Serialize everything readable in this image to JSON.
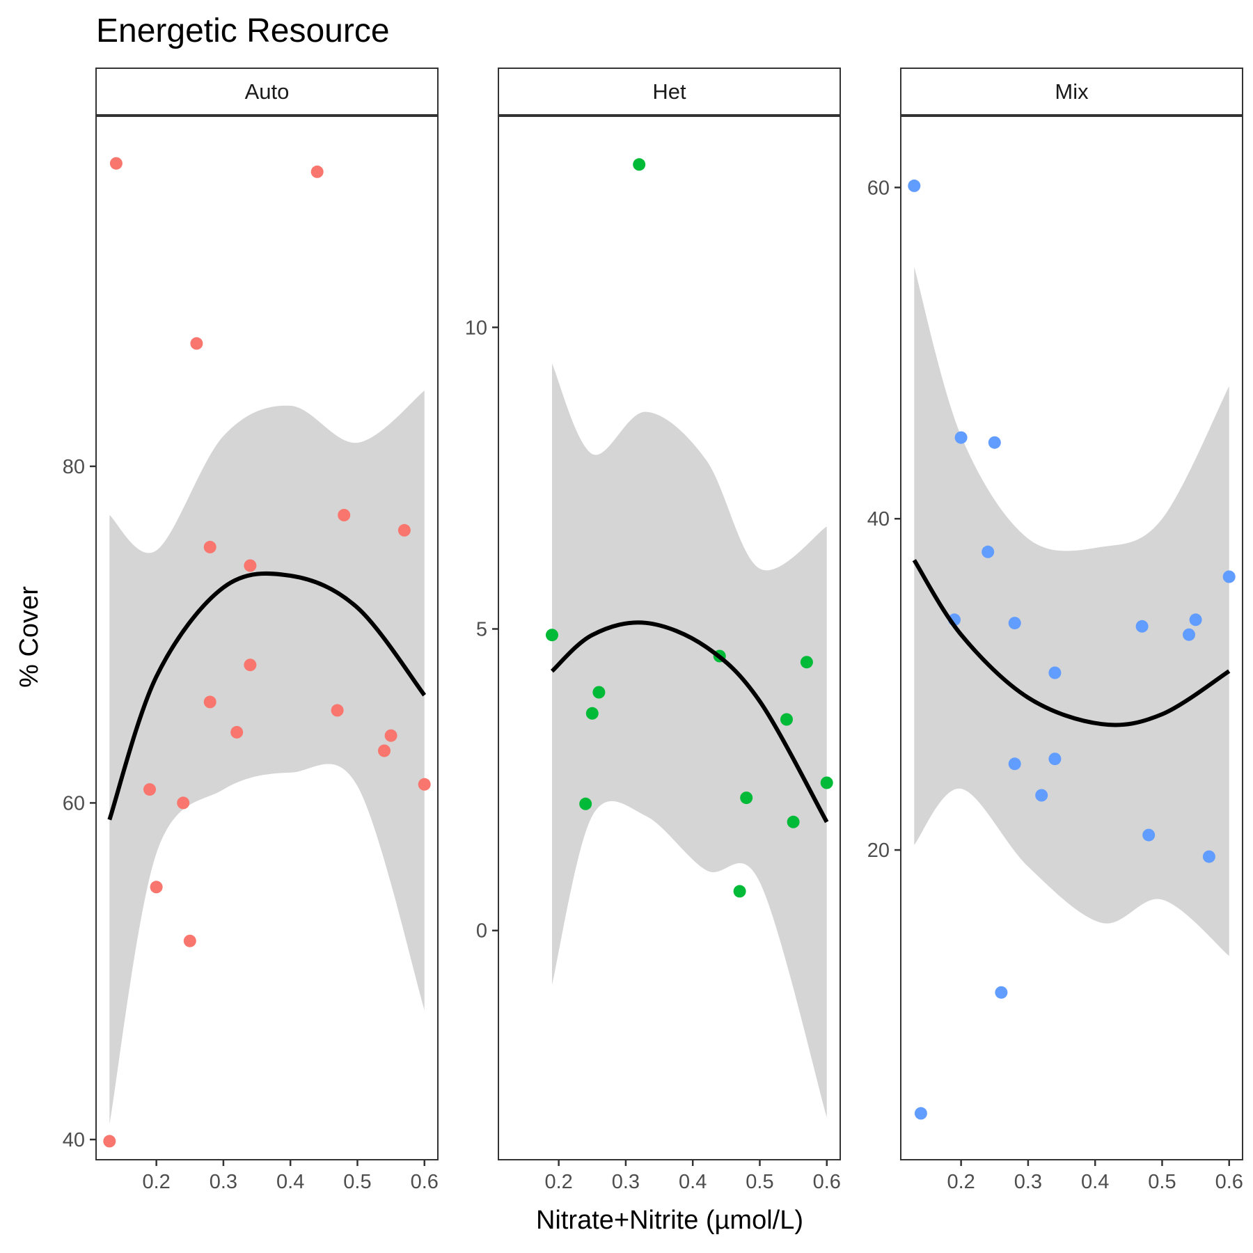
{
  "chart_data": {
    "type": "scatter",
    "title": "Energetic Resource",
    "xlabel": "Nitrate+Nitrite (µmol/L)",
    "ylabel": "% Cover",
    "x_ticks": [
      "0.2",
      "0.3",
      "0.4",
      "0.5",
      "0.6"
    ],
    "xlim": [
      0.11,
      0.62
    ],
    "grid": false,
    "legend": "none",
    "fit_color": "#000000",
    "ribbon_color": "#d5d5d5",
    "panels": [
      {
        "name": "Auto",
        "color": "#F8766D",
        "ylim": [
          38.8,
          100.8
        ],
        "y_ticks": [
          40,
          60,
          80
        ],
        "y_tick_labels": [
          "40",
          "60",
          "80"
        ],
        "points": [
          {
            "x": 0.13,
            "y": 39.9
          },
          {
            "x": 0.14,
            "y": 98.0
          },
          {
            "x": 0.19,
            "y": 60.8
          },
          {
            "x": 0.2,
            "y": 55.0
          },
          {
            "x": 0.24,
            "y": 60.0
          },
          {
            "x": 0.25,
            "y": 51.8
          },
          {
            "x": 0.26,
            "y": 87.3
          },
          {
            "x": 0.28,
            "y": 75.2
          },
          {
            "x": 0.28,
            "y": 66.0
          },
          {
            "x": 0.32,
            "y": 64.2
          },
          {
            "x": 0.34,
            "y": 74.1
          },
          {
            "x": 0.34,
            "y": 68.2
          },
          {
            "x": 0.44,
            "y": 97.5
          },
          {
            "x": 0.47,
            "y": 65.5
          },
          {
            "x": 0.48,
            "y": 77.1
          },
          {
            "x": 0.54,
            "y": 63.1
          },
          {
            "x": 0.55,
            "y": 64.0
          },
          {
            "x": 0.57,
            "y": 76.2
          },
          {
            "x": 0.6,
            "y": 61.1
          }
        ],
        "fit": [
          {
            "x": 0.13,
            "y": 59.0,
            "lo": 40.9,
            "hi": 77.1
          },
          {
            "x": 0.2,
            "y": 67.5,
            "lo": 57.0,
            "hi": 75.0
          },
          {
            "x": 0.3,
            "y": 72.8,
            "lo": 60.8,
            "hi": 81.8
          },
          {
            "x": 0.4,
            "y": 73.5,
            "lo": 61.8,
            "hi": 83.6
          },
          {
            "x": 0.5,
            "y": 71.6,
            "lo": 61.0,
            "hi": 81.4
          },
          {
            "x": 0.6,
            "y": 66.4,
            "lo": 47.7,
            "hi": 84.5
          }
        ]
      },
      {
        "name": "Het",
        "color": "#00BA38",
        "ylim": [
          -3.8,
          13.5
        ],
        "y_ticks": [
          0,
          5,
          10
        ],
        "y_tick_labels": [
          "0",
          "5",
          "10"
        ],
        "points": [
          {
            "x": 0.19,
            "y": 4.9
          },
          {
            "x": 0.24,
            "y": 2.1
          },
          {
            "x": 0.25,
            "y": 3.6
          },
          {
            "x": 0.26,
            "y": 3.95
          },
          {
            "x": 0.32,
            "y": 12.7
          },
          {
            "x": 0.44,
            "y": 4.55
          },
          {
            "x": 0.47,
            "y": 0.65
          },
          {
            "x": 0.48,
            "y": 2.2
          },
          {
            "x": 0.54,
            "y": 3.5
          },
          {
            "x": 0.55,
            "y": 1.8
          },
          {
            "x": 0.57,
            "y": 4.45
          },
          {
            "x": 0.6,
            "y": 2.45
          }
        ],
        "fit": [
          {
            "x": 0.19,
            "y": 4.3,
            "lo": -0.9,
            "hi": 9.4
          },
          {
            "x": 0.25,
            "y": 4.9,
            "lo": 1.9,
            "hi": 7.9
          },
          {
            "x": 0.33,
            "y": 5.1,
            "lo": 1.9,
            "hi": 8.6
          },
          {
            "x": 0.42,
            "y": 4.7,
            "lo": 1.0,
            "hi": 7.8
          },
          {
            "x": 0.5,
            "y": 3.8,
            "lo": 0.8,
            "hi": 6.0
          },
          {
            "x": 0.6,
            "y": 1.8,
            "lo": -3.1,
            "hi": 6.7
          }
        ]
      },
      {
        "name": "Mix",
        "color": "#619CFF",
        "ylim": [
          1.3,
          64.3
        ],
        "y_ticks": [
          20,
          40,
          60
        ],
        "y_tick_labels": [
          "20",
          "40",
          "60"
        ],
        "points": [
          {
            "x": 0.13,
            "y": 60.1
          },
          {
            "x": 0.14,
            "y": 4.1
          },
          {
            "x": 0.19,
            "y": 33.9
          },
          {
            "x": 0.2,
            "y": 44.9
          },
          {
            "x": 0.24,
            "y": 38.0
          },
          {
            "x": 0.25,
            "y": 44.6
          },
          {
            "x": 0.26,
            "y": 11.4
          },
          {
            "x": 0.28,
            "y": 33.7
          },
          {
            "x": 0.28,
            "y": 25.2
          },
          {
            "x": 0.32,
            "y": 23.3
          },
          {
            "x": 0.34,
            "y": 30.7
          },
          {
            "x": 0.34,
            "y": 25.5
          },
          {
            "x": 0.47,
            "y": 33.5
          },
          {
            "x": 0.48,
            "y": 20.9
          },
          {
            "x": 0.54,
            "y": 33.0
          },
          {
            "x": 0.55,
            "y": 33.9
          },
          {
            "x": 0.57,
            "y": 19.6
          },
          {
            "x": 0.6,
            "y": 36.5
          }
        ],
        "fit": [
          {
            "x": 0.13,
            "y": 37.5,
            "lo": 20.3,
            "hi": 55.2
          },
          {
            "x": 0.2,
            "y": 33.0,
            "lo": 23.7,
            "hi": 45.0
          },
          {
            "x": 0.3,
            "y": 29.2,
            "lo": 19.0,
            "hi": 38.8
          },
          {
            "x": 0.41,
            "y": 27.6,
            "lo": 15.6,
            "hi": 38.3
          },
          {
            "x": 0.5,
            "y": 28.2,
            "lo": 17.0,
            "hi": 40.0
          },
          {
            "x": 0.6,
            "y": 30.8,
            "lo": 13.6,
            "hi": 48.0
          }
        ]
      }
    ]
  }
}
